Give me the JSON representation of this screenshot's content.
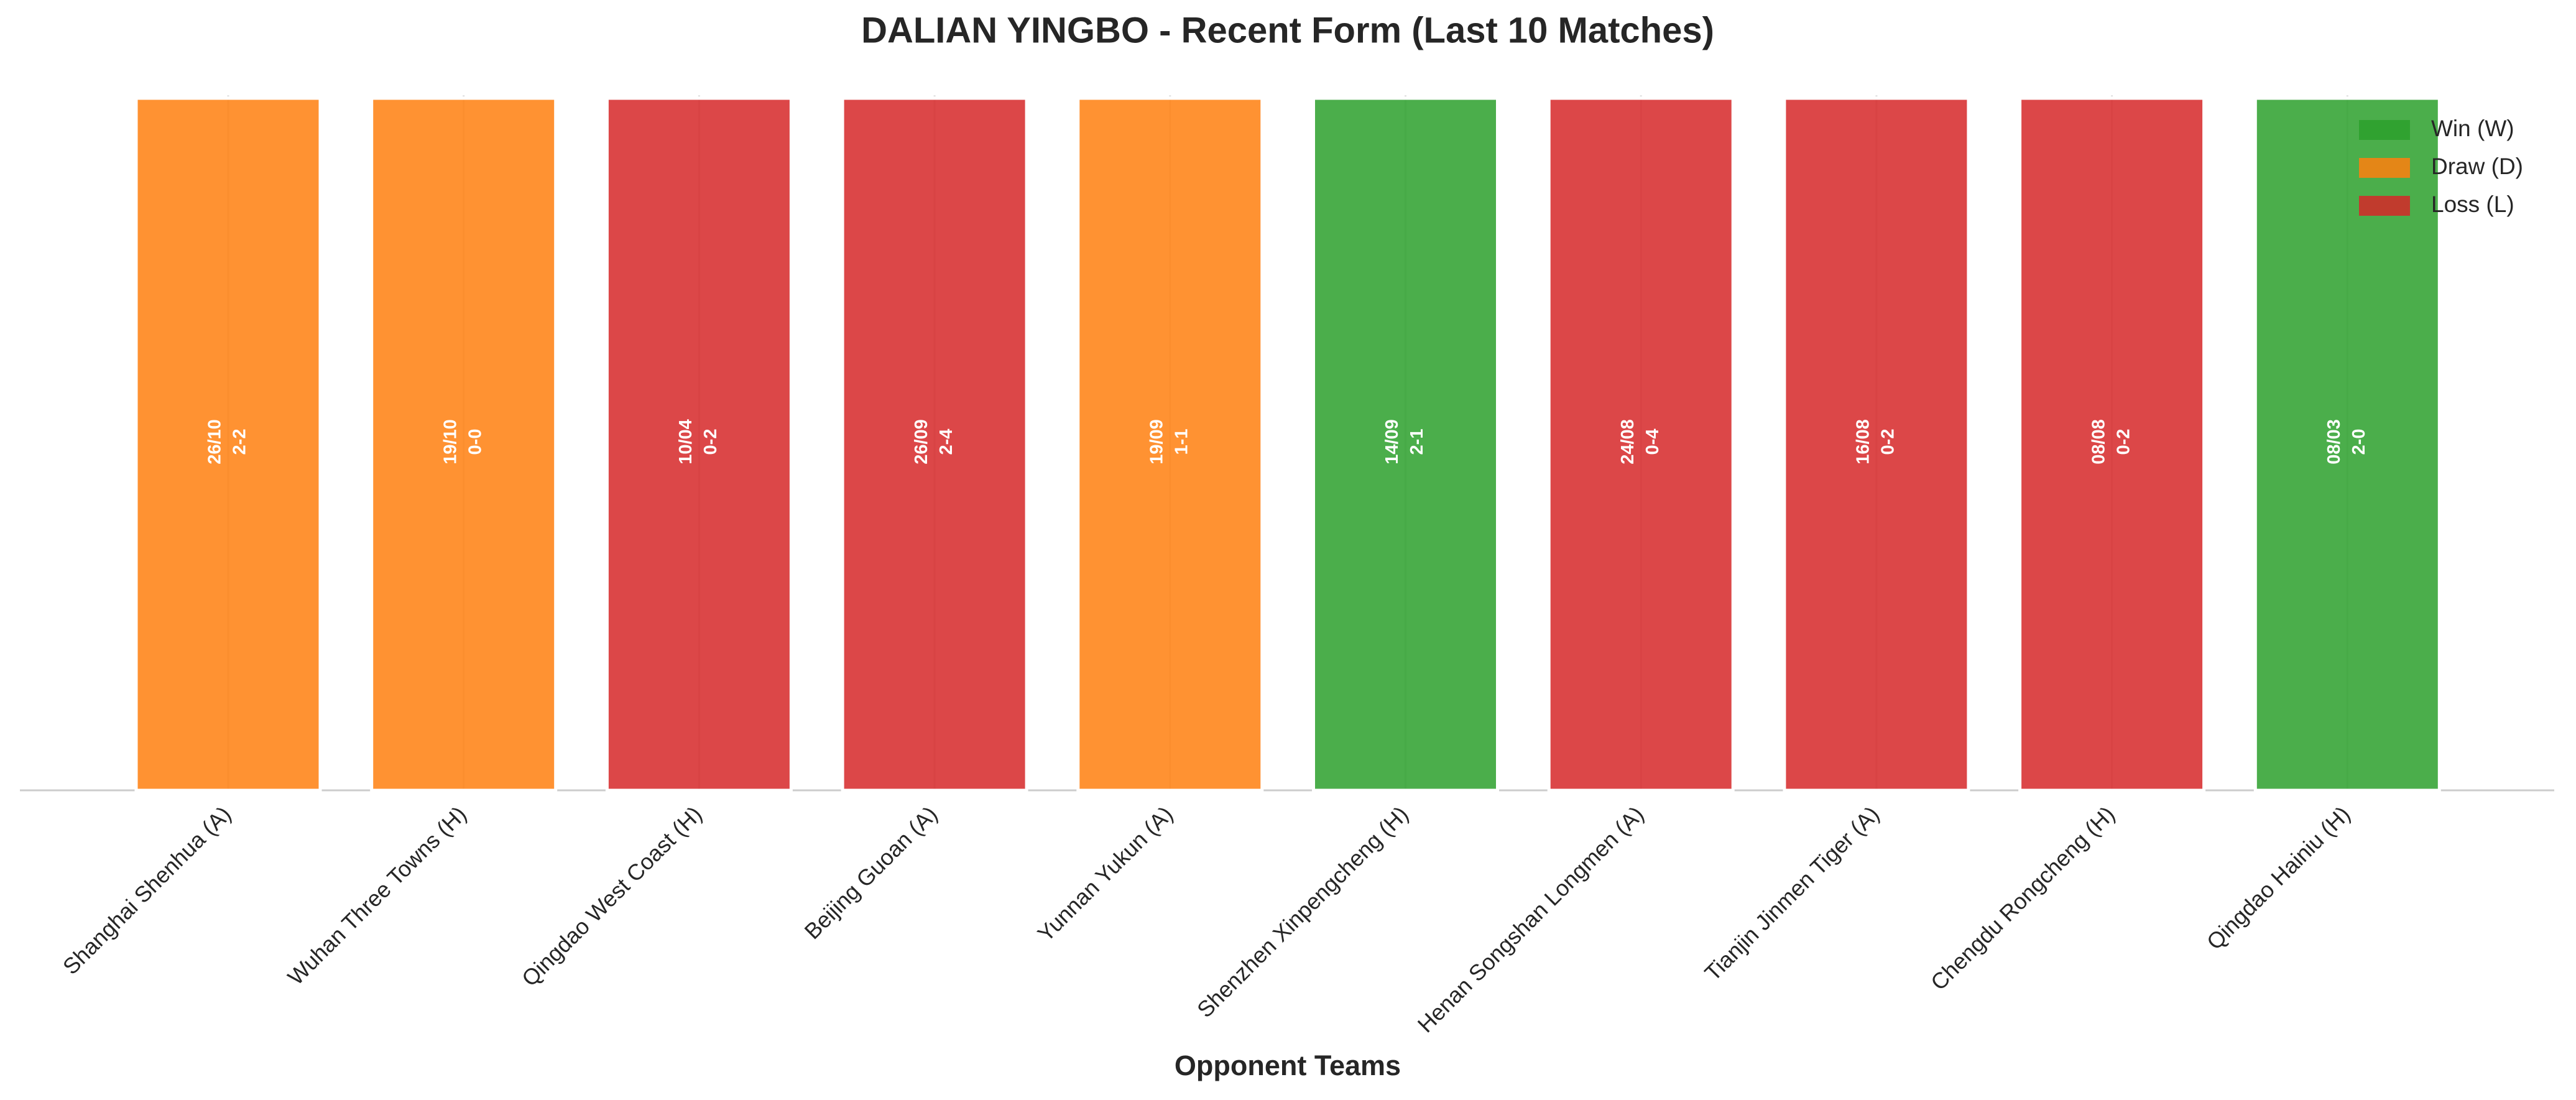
{
  "chart_data": {
    "type": "bar",
    "title": "DALIAN YINGBO - Recent Form (Last 10 Matches)",
    "x_label": "Opponent Teams",
    "categories": [
      "Shanghai Shenhua (A)",
      "Wuhan Three Towns (H)",
      "Qingdao West Coast (H)",
      "Beijing Guoan (A)",
      "Yunnan Yukun (A)",
      "Shenzhen Xinpengcheng (H)",
      "Henan Songshan Longmen (A)",
      "Tianjin Jinmen Tiger (A)",
      "Chengdu Rongcheng (H)",
      "Qingdao Hainiu (H)"
    ],
    "values": [
      1,
      1,
      1,
      1,
      1,
      1,
      1,
      1,
      1,
      1
    ],
    "dates": [
      "26/10",
      "19/10",
      "10/04",
      "26/09",
      "19/09",
      "14/09",
      "24/08",
      "16/08",
      "08/08",
      "08/03"
    ],
    "scores": [
      "2-2",
      "0-0",
      "0-2",
      "2-4",
      "1-1",
      "2-1",
      "0-4",
      "0-2",
      "0-2",
      "2-0"
    ],
    "colors": [
      "#ff7f0e",
      "#ff7f0e",
      "#d62728",
      "#d62728",
      "#ff7f0e",
      "#2ca02c",
      "#d62728",
      "#d62728",
      "#d62728",
      "#2ca02c"
    ],
    "legend": [
      {
        "name": "Win (W)",
        "color": "#2ca02c"
      },
      {
        "name": "Draw (D)",
        "color": "#ff7f0e"
      },
      {
        "name": "Loss (L)",
        "color": "#d62728"
      }
    ],
    "legend_position": "upper right",
    "ylim": [
      0,
      1
    ],
    "grid": true
  }
}
